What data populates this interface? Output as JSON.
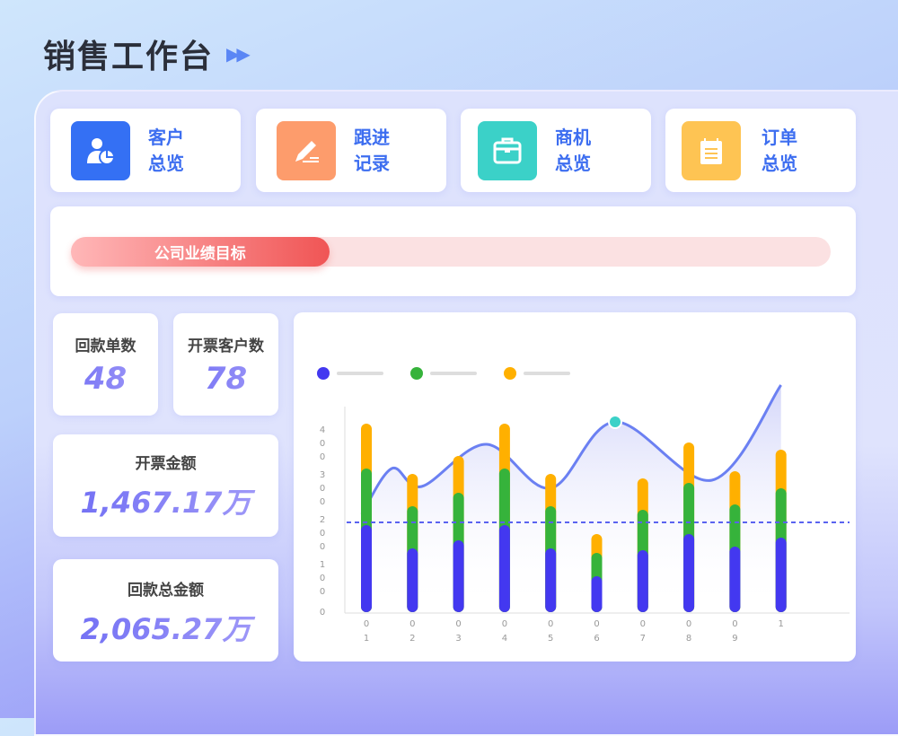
{
  "header": {
    "title": "销售工作台",
    "arrow_icon": "double-chevron-right-icon"
  },
  "nav_cards": [
    {
      "label": "客户总览",
      "icon": "user-pie-chart-icon",
      "color": "#3470f4"
    },
    {
      "label": "跟进记录",
      "icon": "pencil-edit-icon",
      "color": "#fd9c6c"
    },
    {
      "label": "商机总览",
      "icon": "briefcase-icon",
      "color": "#3bd1c8"
    },
    {
      "label": "订单总览",
      "icon": "notepad-icon",
      "color": "#fec453"
    }
  ],
  "goal": {
    "label": "公司业绩目标",
    "progress_percent": 34
  },
  "stats": {
    "payment_orders": {
      "label": "回款单数",
      "value": "48"
    },
    "invoice_customers": {
      "label": "开票客户数",
      "value": "78"
    },
    "invoice_amount": {
      "label": "开票金额",
      "value": "1,467.17万"
    },
    "payment_total": {
      "label": "回款总金额",
      "value": "2,065.27万"
    }
  },
  "chart_data": {
    "type": "bar",
    "stacked": true,
    "categories": [
      "01",
      "02",
      "03",
      "04",
      "05",
      "06",
      "07",
      "08",
      "09",
      "1"
    ],
    "y_ticks": [
      "0",
      "100",
      "200",
      "300",
      "400"
    ],
    "ylim": [
      0,
      500
    ],
    "series": [
      {
        "color": "#4338f0",
        "values": [
          194,
          142,
          160,
          194,
          142,
          80,
          138,
          174,
          146,
          166
        ]
      },
      {
        "color": "#36b33b",
        "values": [
          126,
          94,
          106,
          126,
          94,
          52,
          90,
          114,
          94,
          110
        ]
      },
      {
        "color": "#ffb000",
        "values": [
          100,
          72,
          82,
          100,
          72,
          42,
          70,
          90,
          74,
          86
        ]
      }
    ],
    "line": {
      "type": "area",
      "color": "#6b80f2",
      "points": [
        [
          0.9,
          218
        ],
        [
          1.55,
          320
        ],
        [
          2.2,
          280
        ],
        [
          3.6,
          374
        ],
        [
          5.0,
          276
        ],
        [
          6.4,
          424
        ],
        [
          8.5,
          294
        ],
        [
          10,
          506
        ]
      ],
      "highlight_index": 5,
      "highlight_color": "#3bd1c8"
    },
    "reference_line": {
      "value": 200,
      "style": "dashed",
      "color": "#5a63f0"
    },
    "legend": {
      "placement": "top-left",
      "entries": 3
    },
    "grid": false
  }
}
